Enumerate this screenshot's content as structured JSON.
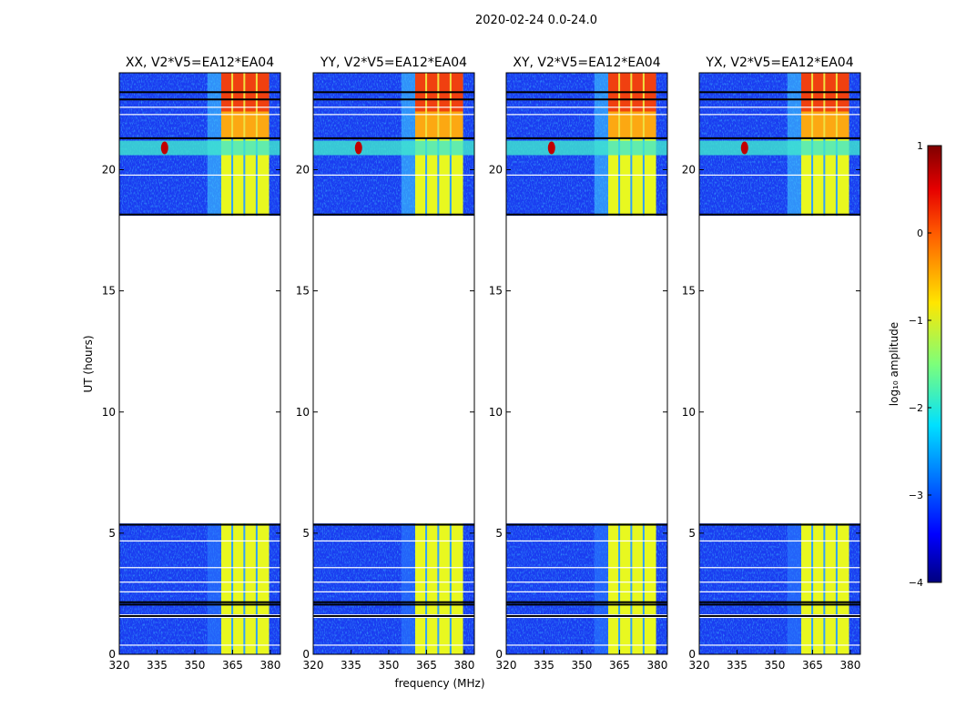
{
  "chart_data": {
    "type": "heatmap",
    "title": "2020-02-24 0.0-24.0",
    "xlabel": "frequency (MHz)",
    "ylabel": "UT (hours)",
    "xlim": [
      320,
      384
    ],
    "ylim": [
      0,
      24
    ],
    "xticks": [
      "320",
      "335",
      "350",
      "365",
      "380"
    ],
    "xtick_values": [
      320,
      335,
      350,
      365,
      380
    ],
    "yticks": [
      "0",
      "5",
      "10",
      "15",
      "20"
    ],
    "ytick_values": [
      0,
      5,
      10,
      15,
      20
    ],
    "panels": [
      {
        "title": "XX, V2*V5=EA12*EA04"
      },
      {
        "title": "YY, V2*V5=EA12*EA04"
      },
      {
        "title": "XY, V2*V5=EA12*EA04"
      },
      {
        "title": "YX, V2*V5=EA12*EA04"
      }
    ],
    "data_segments_hours": [
      [
        0,
        1.5
      ],
      [
        1.65,
        5.4
      ],
      [
        18.1,
        24
      ]
    ],
    "flagged_gaps_hours": [
      1.58,
      2.05,
      2.15,
      5.35,
      18.15,
      21.3,
      22.9,
      23.2
    ],
    "strong_band_mhz": [
      360.5,
      379.5
    ],
    "band_subchannel_gaps_mhz": [
      364.5,
      369.3,
      374.2
    ],
    "strong_emission_hours": [
      22.4,
      24
    ],
    "rfi_line_hours": [
      20.6,
      21.2
    ],
    "rfi_peak_mhz": 338,
    "colorbar": {
      "label": "log₁₀ amplitude",
      "range": [
        -4,
        1
      ],
      "ticks": [
        "−4",
        "−3",
        "−2",
        "−1",
        "0",
        "1"
      ],
      "tick_values": [
        -4,
        -3,
        -2,
        -1,
        0,
        1
      ],
      "colormap": "jet"
    }
  }
}
